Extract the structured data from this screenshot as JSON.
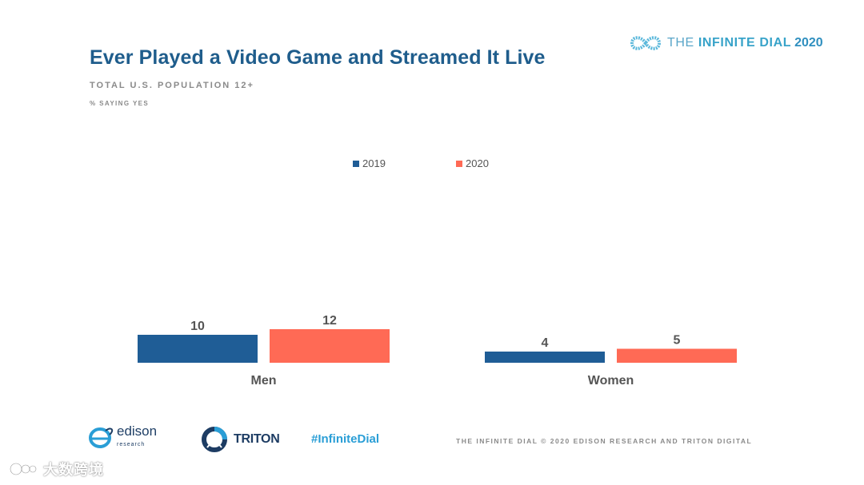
{
  "brand": {
    "prefix": "THE ",
    "name": "INFINITE DIAL",
    "year": "2020"
  },
  "chart_data": {
    "type": "bar",
    "title": "Ever Played a Video Game and Streamed It Live",
    "subtitle": "TOTAL U.S. POPULATION 12+",
    "note": "% SAYING YES",
    "categories": [
      "Men",
      "Women"
    ],
    "series": [
      {
        "name": "2019",
        "color": "#1f5d96",
        "values": [
          10,
          4
        ]
      },
      {
        "name": "2020",
        "color": "#ff6a55",
        "values": [
          12,
          5
        ]
      }
    ],
    "xlabel": "",
    "ylabel": "",
    "ylim": [
      0,
      100
    ],
    "legend": "top-center",
    "grid": false
  },
  "footer": {
    "edison_name": "edison",
    "edison_sub": "research",
    "triton_name": "TRITON",
    "hashtag": "#InfiniteDial",
    "copyright": "THE INFINITE DIAL   © 2020 EDISON RESEARCH AND TRITON DIGITAL"
  },
  "watermark": {
    "text": "大数跨境"
  }
}
